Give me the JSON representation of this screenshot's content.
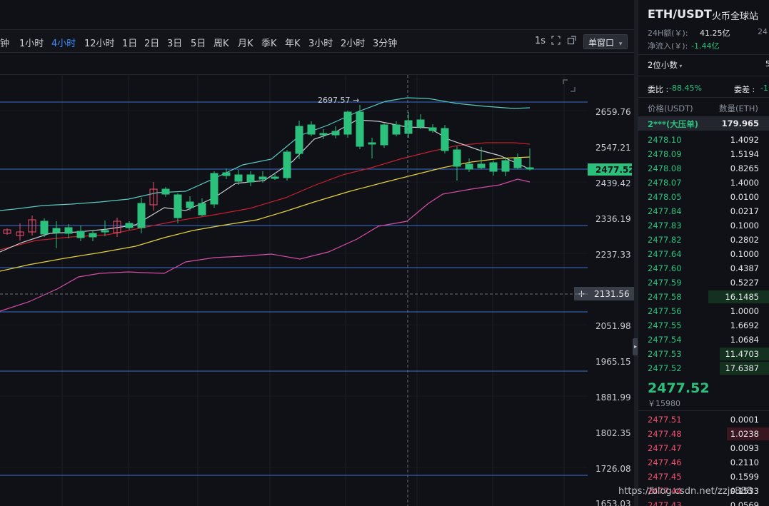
{
  "toolbar": {
    "timeframes": [
      "钟",
      "1小时",
      "4小时",
      "12小时",
      "1日",
      "2日",
      "3日",
      "5日",
      "周K",
      "月K",
      "季K",
      "年K",
      "3小时",
      "2小时",
      "3分钟"
    ],
    "active_index": 2,
    "interval_label": "1s",
    "window_mode": "单窗口",
    "icons": [
      "fullscreen-icon",
      "popout-icon"
    ]
  },
  "chart": {
    "price_labels": [
      "2659.76",
      "2547.21",
      "2439.42",
      "2336.19",
      "2237.33",
      "2131.56",
      "2051.98",
      "1965.15",
      "1881.99",
      "1802.35",
      "1726.08",
      "1653.03"
    ],
    "current_price": "2477.52",
    "crosshair_price": "2131.56",
    "high_marker": "2697.57",
    "crosshair_plus": "+",
    "colors": {
      "up": "#2bc17c",
      "down": "#f0506e",
      "accent": "#3d8bff",
      "bg": "#0f1117"
    }
  },
  "panel": {
    "pair": "ETH/USDT",
    "exchange": "火币全球站",
    "volume_label": "24H额(￥):",
    "volume_value": "41.25亿",
    "volume_label2": "24",
    "netflow_label": "净流入(￥):",
    "netflow_value": "-1.44亿",
    "decimals": "2位小数",
    "commission_ratio_label": "委比 :",
    "commission_ratio_value": "-88.45%",
    "commission_diff_label": "委差 :",
    "commission_diff_value": "-1",
    "col_price": "价格(USDT)",
    "col_qty": "数量(ETH)",
    "big_order": {
      "price": "2***(大压单)",
      "qty": "179.965"
    },
    "asks": [
      {
        "price": "2478.10",
        "qty": "1.4092"
      },
      {
        "price": "2478.09",
        "qty": "1.5194"
      },
      {
        "price": "2478.08",
        "qty": "0.8265"
      },
      {
        "price": "2478.07",
        "qty": "1.4000"
      },
      {
        "price": "2478.05",
        "qty": "0.0100"
      },
      {
        "price": "2477.84",
        "qty": "0.0217"
      },
      {
        "price": "2477.83",
        "qty": "0.1000"
      },
      {
        "price": "2477.82",
        "qty": "0.2802"
      },
      {
        "price": "2477.64",
        "qty": "0.1000"
      },
      {
        "price": "2477.60",
        "qty": "0.4387"
      },
      {
        "price": "2477.59",
        "qty": "0.5227"
      },
      {
        "price": "2477.58",
        "qty": "16.1485"
      },
      {
        "price": "2477.56",
        "qty": "1.0000"
      },
      {
        "price": "2477.55",
        "qty": "1.6692"
      },
      {
        "price": "2477.54",
        "qty": "1.0684"
      },
      {
        "price": "2477.53",
        "qty": "11.4703"
      },
      {
        "price": "2477.52",
        "qty": "17.6387"
      }
    ],
    "last_price": "2477.52",
    "last_cny": "￥15980",
    "bids": [
      {
        "price": "2477.51",
        "qty": "0.0001"
      },
      {
        "price": "2477.48",
        "qty": "1.0238"
      },
      {
        "price": "2477.47",
        "qty": "0.0093"
      },
      {
        "price": "2477.46",
        "qty": "0.2110"
      },
      {
        "price": "2477.45",
        "qty": "0.1599"
      },
      {
        "price": "2477.44",
        "qty": "0.1533"
      },
      {
        "price": "2477.43",
        "qty": "0.0569"
      }
    ],
    "watermark": "https://blog.csdn.net/zzjs888"
  }
}
